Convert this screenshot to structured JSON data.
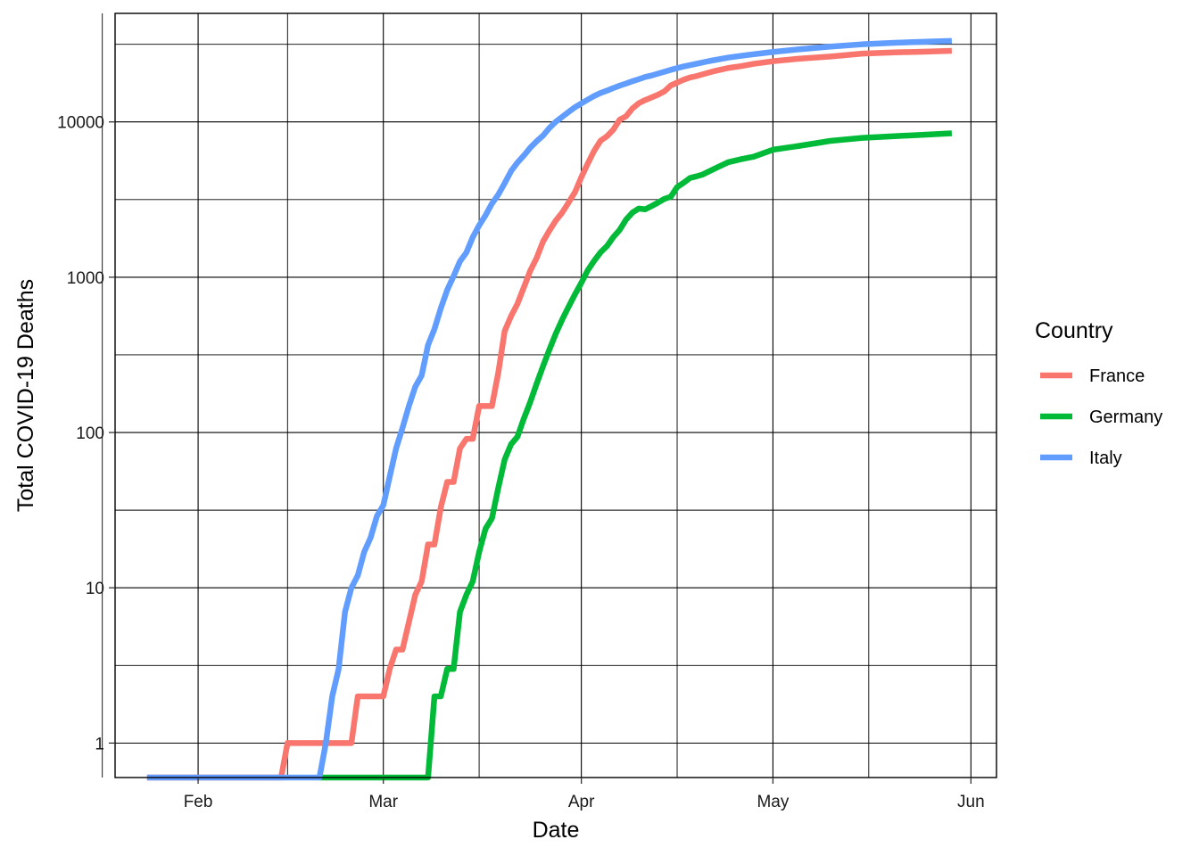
{
  "chart_data": {
    "type": "line",
    "xlabel": "Date",
    "ylabel": "Total COVID-19 Deaths",
    "yscale": "log10",
    "ylim": [
      0.6,
      50000
    ],
    "xlim": [
      "2020-01-19",
      "2020-06-05"
    ],
    "grid": true,
    "x_ticks": [
      {
        "label": "Feb",
        "date": "2020-02-01"
      },
      {
        "label": "Mar",
        "date": "2020-03-01"
      },
      {
        "label": "Apr",
        "date": "2020-04-01"
      },
      {
        "label": "May",
        "date": "2020-05-01"
      },
      {
        "label": "Jun",
        "date": "2020-06-01"
      }
    ],
    "x_minor_dates": [
      "2020-01-17",
      "2020-02-15",
      "2020-03-16",
      "2020-04-16",
      "2020-05-16"
    ],
    "y_ticks": [
      {
        "label": "1",
        "value": 1
      },
      {
        "label": "10",
        "value": 10
      },
      {
        "label": "100",
        "value": 100
      },
      {
        "label": "1000",
        "value": 1000
      },
      {
        "label": "10000",
        "value": 10000
      }
    ],
    "y_minor_values": [
      3.162,
      31.62,
      316.2,
      3162,
      31623
    ],
    "legend": {
      "title": "Country",
      "position": "right"
    },
    "series": [
      {
        "name": "France",
        "color": "#F8766D",
        "points": [
          [
            "2020-01-24",
            0.6
          ],
          [
            "2020-02-14",
            0.6
          ],
          [
            "2020-02-15",
            1
          ],
          [
            "2020-02-25",
            1
          ],
          [
            "2020-02-26",
            2
          ],
          [
            "2020-03-01",
            2
          ],
          [
            "2020-03-02",
            3
          ],
          [
            "2020-03-03",
            4
          ],
          [
            "2020-03-04",
            4
          ],
          [
            "2020-03-05",
            6
          ],
          [
            "2020-03-06",
            9
          ],
          [
            "2020-03-07",
            11
          ],
          [
            "2020-03-08",
            19
          ],
          [
            "2020-03-09",
            19
          ],
          [
            "2020-03-10",
            33
          ],
          [
            "2020-03-11",
            48
          ],
          [
            "2020-03-12",
            48
          ],
          [
            "2020-03-13",
            79
          ],
          [
            "2020-03-14",
            91
          ],
          [
            "2020-03-15",
            91
          ],
          [
            "2020-03-16",
            148
          ],
          [
            "2020-03-17",
            148
          ],
          [
            "2020-03-18",
            148
          ],
          [
            "2020-03-19",
            243
          ],
          [
            "2020-03-20",
            450
          ],
          [
            "2020-03-21",
            562
          ],
          [
            "2020-03-22",
            674
          ],
          [
            "2020-03-23",
            860
          ],
          [
            "2020-03-24",
            1100
          ],
          [
            "2020-03-25",
            1331
          ],
          [
            "2020-03-26",
            1696
          ],
          [
            "2020-03-27",
            1995
          ],
          [
            "2020-03-28",
            2314
          ],
          [
            "2020-03-29",
            2606
          ],
          [
            "2020-03-30",
            3024
          ],
          [
            "2020-03-31",
            3523
          ],
          [
            "2020-04-01",
            4403
          ],
          [
            "2020-04-02",
            5387
          ],
          [
            "2020-04-03",
            6507
          ],
          [
            "2020-04-04",
            7560
          ],
          [
            "2020-04-05",
            8078
          ],
          [
            "2020-04-06",
            8911
          ],
          [
            "2020-04-07",
            10328
          ],
          [
            "2020-04-08",
            10869
          ],
          [
            "2020-04-09",
            12210
          ],
          [
            "2020-04-10",
            13197
          ],
          [
            "2020-04-11",
            13832
          ],
          [
            "2020-04-12",
            14393
          ],
          [
            "2020-04-13",
            14967
          ],
          [
            "2020-04-14",
            15729
          ],
          [
            "2020-04-15",
            17167
          ],
          [
            "2020-04-16",
            17920
          ],
          [
            "2020-04-17",
            18681
          ],
          [
            "2020-04-18",
            19323
          ],
          [
            "2020-04-19",
            19718
          ],
          [
            "2020-04-20",
            20265
          ],
          [
            "2020-04-22",
            21340
          ],
          [
            "2020-04-24",
            22245
          ],
          [
            "2020-04-26",
            22856
          ],
          [
            "2020-04-28",
            23660
          ],
          [
            "2020-05-01",
            24594
          ],
          [
            "2020-05-05",
            25531
          ],
          [
            "2020-05-10",
            26380
          ],
          [
            "2020-05-15",
            27529
          ],
          [
            "2020-05-20",
            28022
          ],
          [
            "2020-05-25",
            28367
          ],
          [
            "2020-05-29",
            28714
          ]
        ]
      },
      {
        "name": "Germany",
        "color": "#00BA38",
        "points": [
          [
            "2020-02-20",
            0.6
          ],
          [
            "2020-03-08",
            0.6
          ],
          [
            "2020-03-09",
            2
          ],
          [
            "2020-03-10",
            2
          ],
          [
            "2020-03-11",
            3
          ],
          [
            "2020-03-12",
            3
          ],
          [
            "2020-03-13",
            7
          ],
          [
            "2020-03-14",
            9
          ],
          [
            "2020-03-15",
            11
          ],
          [
            "2020-03-16",
            17
          ],
          [
            "2020-03-17",
            24
          ],
          [
            "2020-03-18",
            28
          ],
          [
            "2020-03-19",
            44
          ],
          [
            "2020-03-20",
            67
          ],
          [
            "2020-03-21",
            84
          ],
          [
            "2020-03-22",
            94
          ],
          [
            "2020-03-23",
            123
          ],
          [
            "2020-03-24",
            157
          ],
          [
            "2020-03-25",
            206
          ],
          [
            "2020-03-26",
            267
          ],
          [
            "2020-03-27",
            342
          ],
          [
            "2020-03-28",
            433
          ],
          [
            "2020-03-29",
            533
          ],
          [
            "2020-03-30",
            645
          ],
          [
            "2020-03-31",
            775
          ],
          [
            "2020-04-01",
            920
          ],
          [
            "2020-04-02",
            1107
          ],
          [
            "2020-04-03",
            1275
          ],
          [
            "2020-04-04",
            1444
          ],
          [
            "2020-04-05",
            1584
          ],
          [
            "2020-04-06",
            1810
          ],
          [
            "2020-04-07",
            2016
          ],
          [
            "2020-04-08",
            2349
          ],
          [
            "2020-04-09",
            2607
          ],
          [
            "2020-04-10",
            2767
          ],
          [
            "2020-04-11",
            2736
          ],
          [
            "2020-04-12",
            2871
          ],
          [
            "2020-04-13",
            3022
          ],
          [
            "2020-04-14",
            3194
          ],
          [
            "2020-04-15",
            3294
          ],
          [
            "2020-04-16",
            3804
          ],
          [
            "2020-04-17",
            4052
          ],
          [
            "2020-04-18",
            4352
          ],
          [
            "2020-04-19",
            4459
          ],
          [
            "2020-04-20",
            4586
          ],
          [
            "2020-04-22",
            5033
          ],
          [
            "2020-04-24",
            5500
          ],
          [
            "2020-04-26",
            5750
          ],
          [
            "2020-04-28",
            5976
          ],
          [
            "2020-05-01",
            6623
          ],
          [
            "2020-05-05",
            6996
          ],
          [
            "2020-05-10",
            7549
          ],
          [
            "2020-05-15",
            7897
          ],
          [
            "2020-05-20",
            8090
          ],
          [
            "2020-05-25",
            8283
          ],
          [
            "2020-05-29",
            8450
          ]
        ]
      },
      {
        "name": "Italy",
        "color": "#619CFF",
        "points": [
          [
            "2020-01-24",
            0.6
          ],
          [
            "2020-02-20",
            0.6
          ],
          [
            "2020-02-21",
            1
          ],
          [
            "2020-02-22",
            2
          ],
          [
            "2020-02-23",
            3
          ],
          [
            "2020-02-24",
            7
          ],
          [
            "2020-02-25",
            10
          ],
          [
            "2020-02-26",
            12
          ],
          [
            "2020-02-27",
            17
          ],
          [
            "2020-02-28",
            21
          ],
          [
            "2020-02-29",
            29
          ],
          [
            "2020-03-01",
            34
          ],
          [
            "2020-03-02",
            52
          ],
          [
            "2020-03-03",
            79
          ],
          [
            "2020-03-04",
            107
          ],
          [
            "2020-03-05",
            148
          ],
          [
            "2020-03-06",
            197
          ],
          [
            "2020-03-07",
            233
          ],
          [
            "2020-03-08",
            366
          ],
          [
            "2020-03-09",
            463
          ],
          [
            "2020-03-10",
            631
          ],
          [
            "2020-03-11",
            827
          ],
          [
            "2020-03-12",
            1016
          ],
          [
            "2020-03-13",
            1266
          ],
          [
            "2020-03-14",
            1441
          ],
          [
            "2020-03-15",
            1809
          ],
          [
            "2020-03-16",
            2158
          ],
          [
            "2020-03-17",
            2503
          ],
          [
            "2020-03-18",
            2978
          ],
          [
            "2020-03-19",
            3405
          ],
          [
            "2020-03-20",
            4032
          ],
          [
            "2020-03-21",
            4825
          ],
          [
            "2020-03-22",
            5476
          ],
          [
            "2020-03-23",
            6077
          ],
          [
            "2020-03-24",
            6820
          ],
          [
            "2020-03-25",
            7503
          ],
          [
            "2020-03-26",
            8165
          ],
          [
            "2020-03-27",
            9134
          ],
          [
            "2020-03-28",
            10023
          ],
          [
            "2020-03-29",
            10779
          ],
          [
            "2020-03-30",
            11591
          ],
          [
            "2020-03-31",
            12428
          ],
          [
            "2020-04-01",
            13155
          ],
          [
            "2020-04-02",
            13915
          ],
          [
            "2020-04-03",
            14681
          ],
          [
            "2020-04-04",
            15362
          ],
          [
            "2020-04-05",
            15887
          ],
          [
            "2020-04-06",
            16523
          ],
          [
            "2020-04-07",
            17127
          ],
          [
            "2020-04-08",
            17669
          ],
          [
            "2020-04-09",
            18279
          ],
          [
            "2020-04-10",
            18849
          ],
          [
            "2020-04-11",
            19468
          ],
          [
            "2020-04-12",
            19899
          ],
          [
            "2020-04-13",
            20465
          ],
          [
            "2020-04-15",
            21645
          ],
          [
            "2020-04-17",
            22745
          ],
          [
            "2020-04-19",
            23660
          ],
          [
            "2020-04-21",
            24648
          ],
          [
            "2020-04-24",
            25969
          ],
          [
            "2020-04-27",
            26977
          ],
          [
            "2020-05-01",
            28236
          ],
          [
            "2020-05-05",
            29315
          ],
          [
            "2020-05-10",
            30560
          ],
          [
            "2020-05-15",
            31610
          ],
          [
            "2020-05-20",
            32330
          ],
          [
            "2020-05-25",
            32877
          ],
          [
            "2020-05-29",
            33229
          ]
        ]
      }
    ]
  }
}
